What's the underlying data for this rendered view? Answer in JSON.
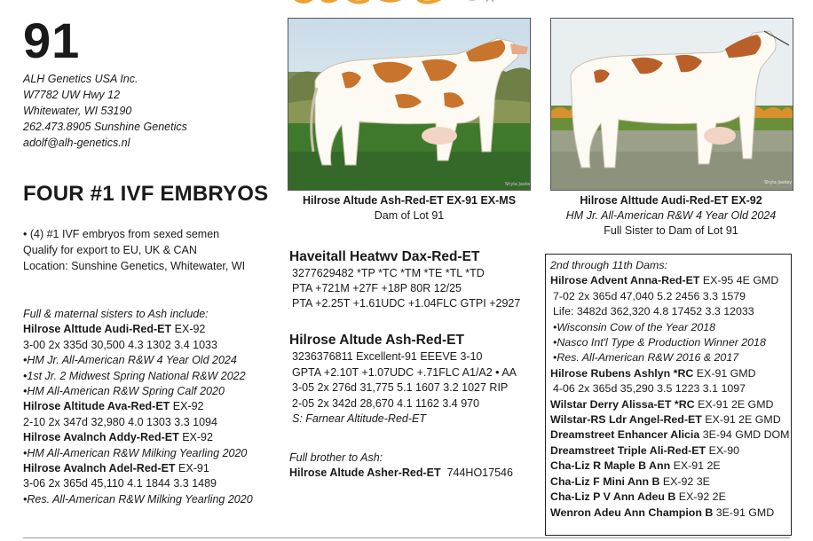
{
  "lot_number": "91",
  "consignor": {
    "name": "ALH Genetics USA Inc.",
    "street": "W7782 UW Hwy 12",
    "city": "Whitewater, WI 53190",
    "phone": "262.473.8905 Sunshine Genetics",
    "email": "adolf@alh-genetics.nl"
  },
  "heading": "FOUR #1 IVF EMBRYOS",
  "bullets": [
    "• (4) #1 IVF embryos from sexed semen",
    "Qualify for export to EU, UK & CAN",
    "Location: Sunshine Genetics, Whitewater, WI"
  ],
  "sisters": {
    "intro": "Full & maternal sisters to Ash include:",
    "entries": [
      {
        "name": "Hilrose Alttude Audi-Red-ET",
        "score": " EX-92",
        "lines": [
          "3-00  2x  335d  30,500  4.3  1302  3.4  1033",
          "•HM Jr. All-American R&W 4 Year Old 2024",
          "•1st Jr. 2 Midwest Spring National R&W 2022",
          "•HM All-American R&W Spring Calf 2020"
        ]
      },
      {
        "name": "Hilrose Altitude Ava-Red-ET",
        "score": " EX-92",
        "lines": [
          "2-10  2x  347d  32,980  4.0  1303  3.3  1094"
        ]
      },
      {
        "name": "Hilrose Avalnch Addy-Red-ET",
        "score": " EX-92",
        "lines": [
          "•HM All-American R&W Milking Yearling 2020"
        ]
      },
      {
        "name": "Hilrose Avalnch Adel-Red-ET",
        "score": " EX-91",
        "lines": [
          "3-06  2x  365d  45,110  4.1  1844  3.3  1489",
          "•Res. All-American R&W Milking Yearling 2020"
        ]
      }
    ]
  },
  "photos": {
    "left": {
      "title": "Hilrose Altude Ash-Red-ET EX-91 EX-MS",
      "sub1": "Dam of Lot 91"
    },
    "right": {
      "title": "Hilrose Alttude Audi-Red-ET EX-92",
      "sub1": "HM Jr. All-American R&W 4 Year Old 2024",
      "sub2": "Full Sister to Dam of Lot 91"
    }
  },
  "sire": {
    "name": "Haveitall Heatwv Dax-Red-ET",
    "lines": [
      "3277629482  *TP *TC *TM *TE *TL *TD",
      "PTA +721M +27F +18P 80R 12/25",
      "PTA +2.25T +1.61UDC +1.04FLC GTPI +2927"
    ]
  },
  "dam": {
    "name": "Hilrose Altude Ash-Red-ET",
    "lines": [
      "3236376811    Excellent-91 EEEVE  3-10",
      "GPTA +2.10T +1.07UDC +.71FLC  A1/A2 • AA",
      "3-05  2x  276d  31,775  5.1  1607  3.2  1027 RIP",
      "2-05  2x  342d  28,670  4.1  1162  3.4    970"
    ],
    "sire_line": "S:  Farnear Altitude-Red-ET"
  },
  "brother": {
    "intro": "Full brother to Ash:",
    "name": "Hilrose Altude Asher-Red-ET",
    "code": "744HO17546"
  },
  "dams": {
    "header": "2nd through 11th Dams:",
    "advent": {
      "name": "Hilrose Advent Anna-Red-ET",
      "score": " EX-95 4E GMD"
    },
    "advent_records": [
      "7-02  2x  365d  47,040  5.2  2456  3.3  1579",
      "Life:  3482d  362,320  4.8  17452  3.3  12033"
    ],
    "advent_notes": [
      "•Wisconsin Cow of the Year 2018",
      "•Nasco Int'l Type & Production Winner 2018",
      "•Res. All-American R&W 2016 & 2017"
    ],
    "rubens": {
      "name": "Hilrose Rubens Ashlyn *RC",
      "score": " EX-91 GMD"
    },
    "rubens_record": "4-06  2x  365d  35,290  3.5  1223  3.1  1097",
    "more": [
      {
        "name": "Wilstar Derry Alissa-ET *RC",
        "score": "  EX-91 2E GMD"
      },
      {
        "name": "Wilstar-RS Ldr Angel-Red-ET",
        "score": " EX-91 2E GMD"
      },
      {
        "name": "Dreamstreet Enhancer Alicia",
        "score": " 3E-94 GMD DOM"
      },
      {
        "name": "Dreamstreet Triple Ali-Red-ET",
        "score": " EX-90"
      },
      {
        "name": "Cha-Liz R Maple B Ann",
        "score": " EX-91 2E"
      },
      {
        "name": "Cha-Liz F Mini Ann B",
        "score": " EX-92 3E"
      },
      {
        "name": "Cha-Liz P V Ann Adeu B",
        "score": " EX-92 2E"
      },
      {
        "name": "Wenron Adeu Ann Champion B",
        "score": " 3E-91 GMD"
      }
    ]
  },
  "colors": {
    "accent": "#f0a030",
    "text": "#1a1a1a"
  },
  "photo_credit": "Shyla Jaskey"
}
